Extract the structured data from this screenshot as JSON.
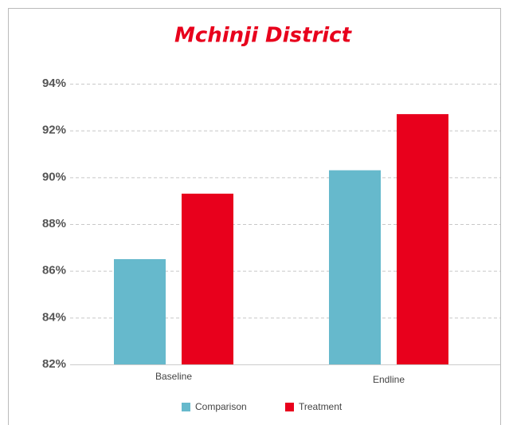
{
  "chart_data": {
    "type": "bar",
    "title": "Mchinji District",
    "categories": [
      "Baseline",
      "Endline"
    ],
    "series": [
      {
        "name": "Comparison",
        "color": "#66b9cc",
        "values": [
          86.5,
          90.3
        ]
      },
      {
        "name": "Treatment",
        "color": "#e8001c",
        "values": [
          89.3,
          92.7
        ]
      }
    ],
    "ylim": [
      82,
      94
    ],
    "yticks": [
      {
        "value": 82,
        "label": "82%"
      },
      {
        "value": 84,
        "label": "84%"
      },
      {
        "value": 86,
        "label": "86%"
      },
      {
        "value": 88,
        "label": "88%"
      },
      {
        "value": 90,
        "label": "90%"
      },
      {
        "value": 92,
        "label": "92%"
      },
      {
        "value": 94,
        "label": "94%"
      }
    ],
    "grid": true,
    "legend": "bottom"
  }
}
